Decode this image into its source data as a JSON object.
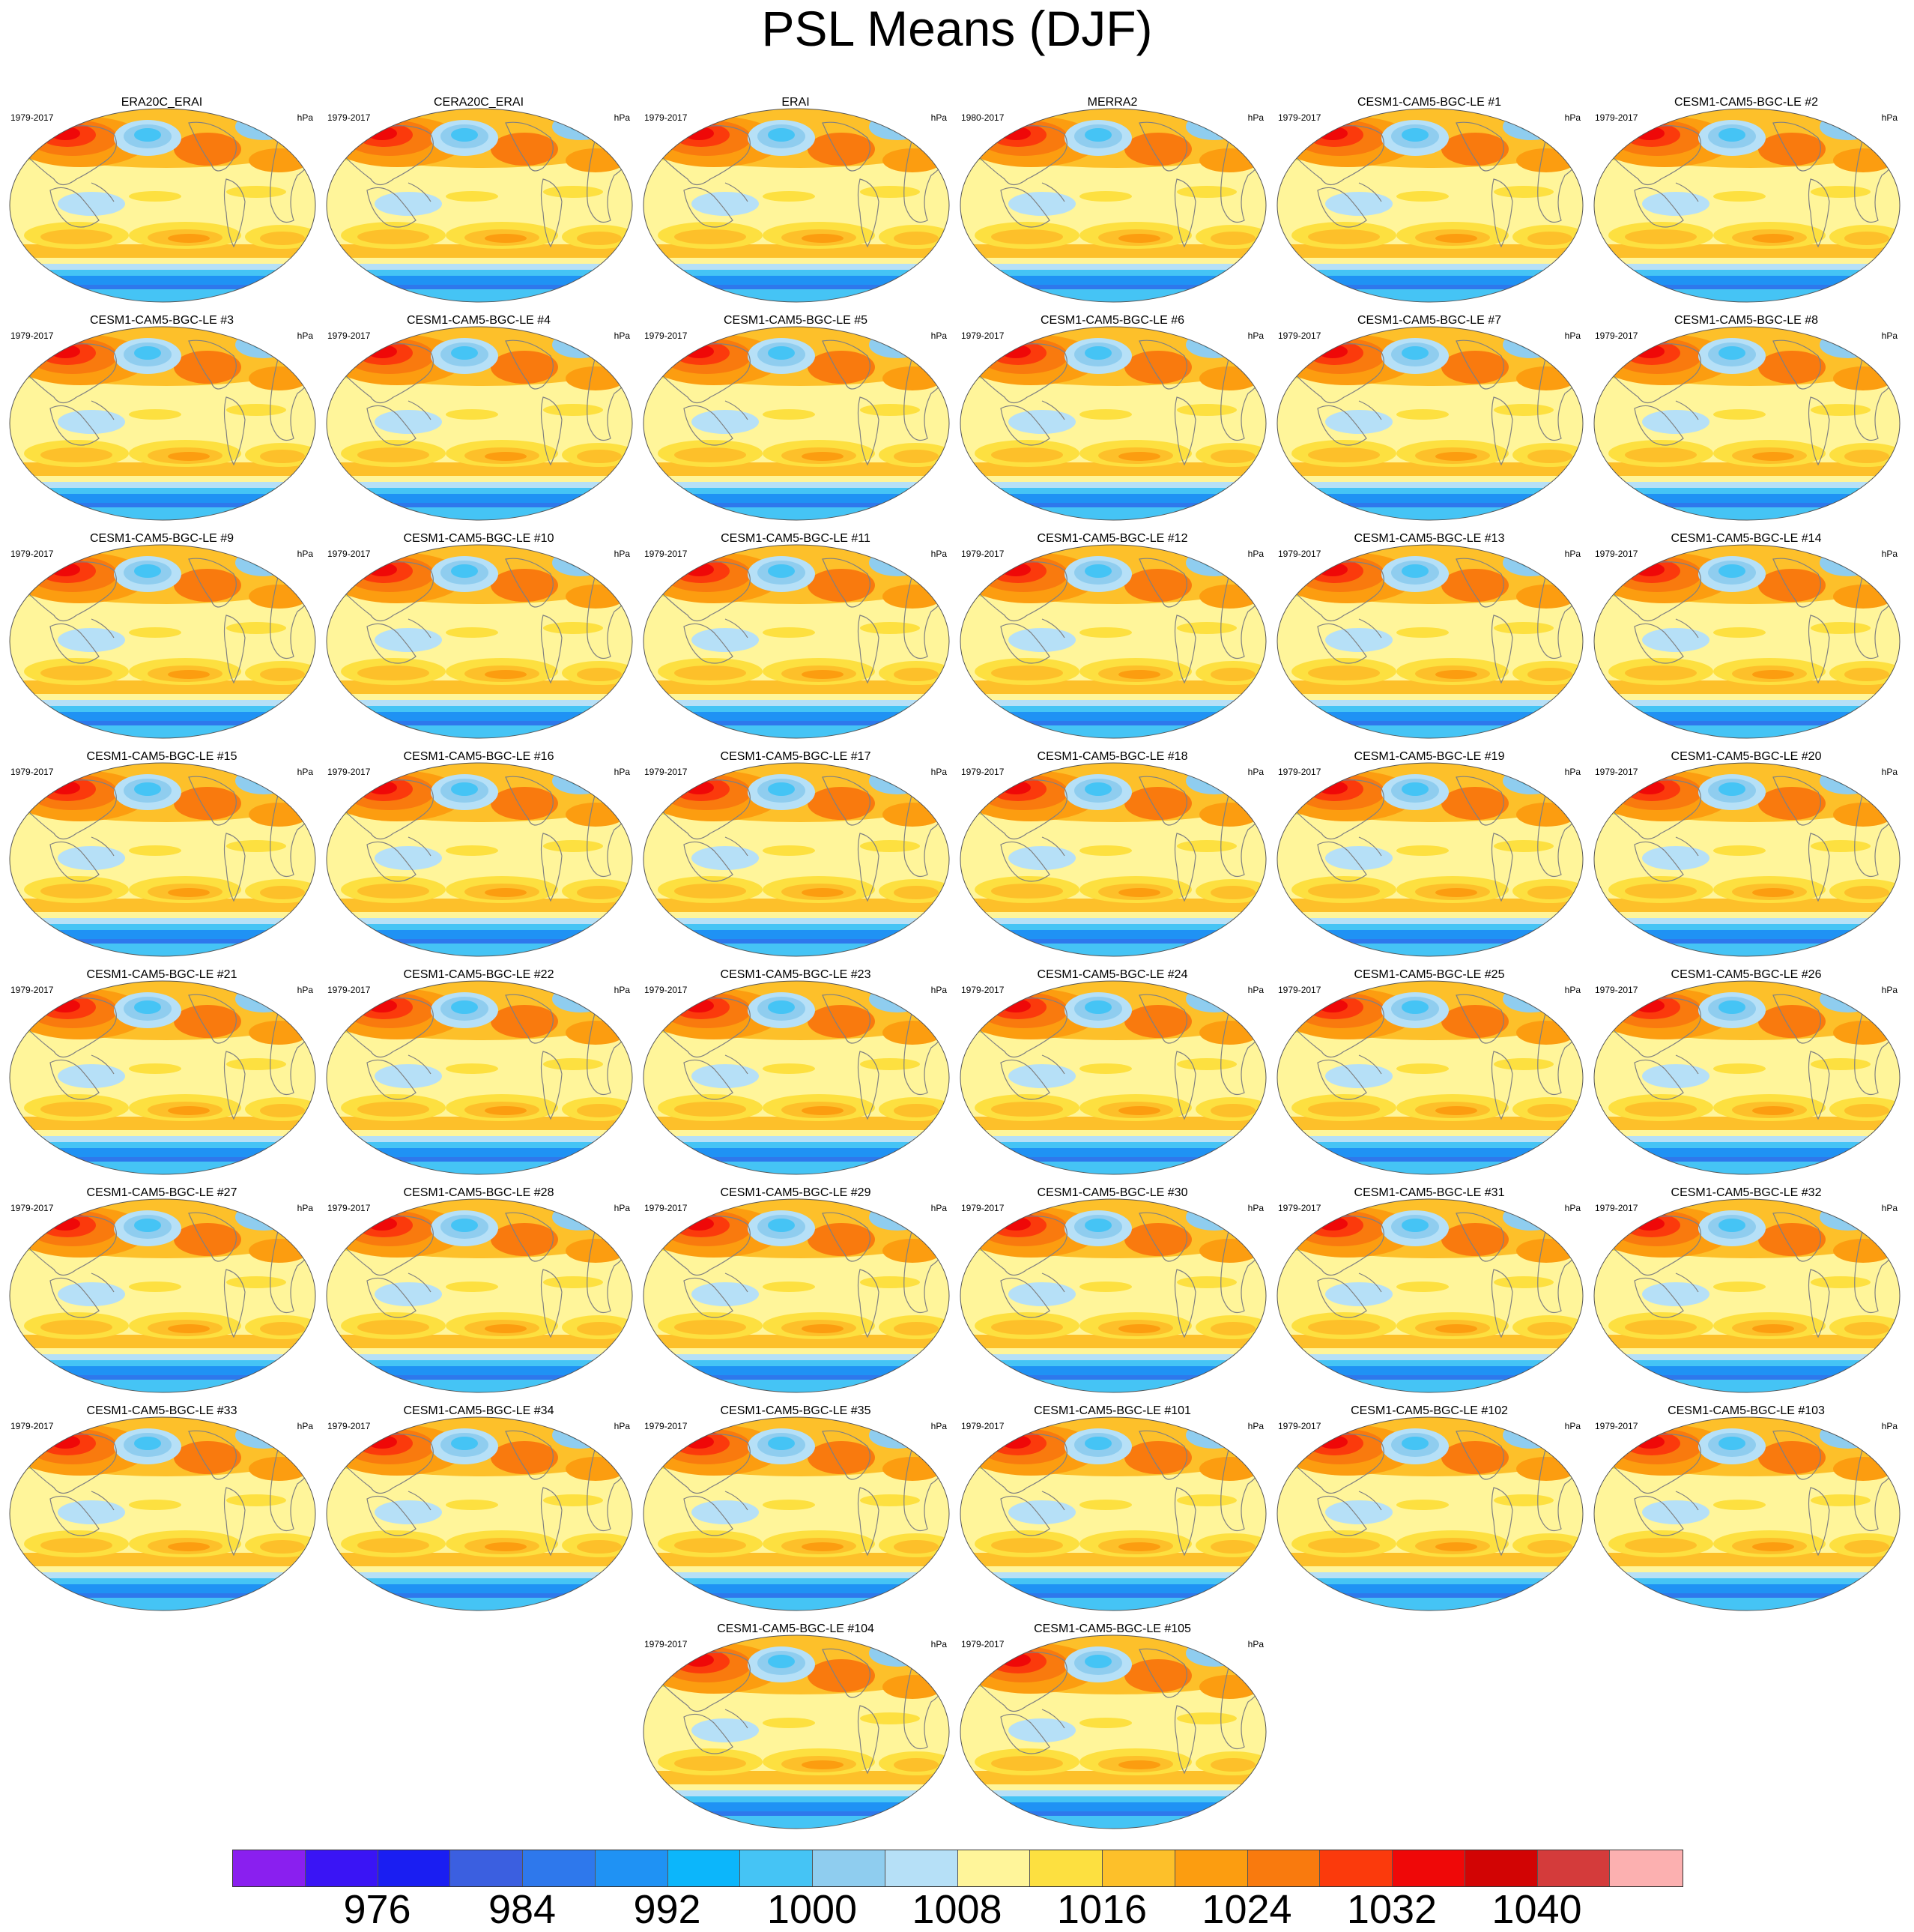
{
  "title": "PSL Means (DJF)",
  "units": "hPa",
  "panels": [
    {
      "title": "ERA20C_ERAI",
      "years": "1979-2017"
    },
    {
      "title": "CERA20C_ERAI",
      "years": "1979-2017"
    },
    {
      "title": "ERAI",
      "years": "1979-2017"
    },
    {
      "title": "MERRA2",
      "years": "1980-2017"
    },
    {
      "title": "CESM1-CAM5-BGC-LE #1",
      "years": "1979-2017"
    },
    {
      "title": "CESM1-CAM5-BGC-LE #2",
      "years": "1979-2017"
    },
    {
      "title": "CESM1-CAM5-BGC-LE #3",
      "years": "1979-2017"
    },
    {
      "title": "CESM1-CAM5-BGC-LE #4",
      "years": "1979-2017"
    },
    {
      "title": "CESM1-CAM5-BGC-LE #5",
      "years": "1979-2017"
    },
    {
      "title": "CESM1-CAM5-BGC-LE #6",
      "years": "1979-2017"
    },
    {
      "title": "CESM1-CAM5-BGC-LE #7",
      "years": "1979-2017"
    },
    {
      "title": "CESM1-CAM5-BGC-LE #8",
      "years": "1979-2017"
    },
    {
      "title": "CESM1-CAM5-BGC-LE #9",
      "years": "1979-2017"
    },
    {
      "title": "CESM1-CAM5-BGC-LE #10",
      "years": "1979-2017"
    },
    {
      "title": "CESM1-CAM5-BGC-LE #11",
      "years": "1979-2017"
    },
    {
      "title": "CESM1-CAM5-BGC-LE #12",
      "years": "1979-2017"
    },
    {
      "title": "CESM1-CAM5-BGC-LE #13",
      "years": "1979-2017"
    },
    {
      "title": "CESM1-CAM5-BGC-LE #14",
      "years": "1979-2017"
    },
    {
      "title": "CESM1-CAM5-BGC-LE #15",
      "years": "1979-2017"
    },
    {
      "title": "CESM1-CAM5-BGC-LE #16",
      "years": "1979-2017"
    },
    {
      "title": "CESM1-CAM5-BGC-LE #17",
      "years": "1979-2017"
    },
    {
      "title": "CESM1-CAM5-BGC-LE #18",
      "years": "1979-2017"
    },
    {
      "title": "CESM1-CAM5-BGC-LE #19",
      "years": "1979-2017"
    },
    {
      "title": "CESM1-CAM5-BGC-LE #20",
      "years": "1979-2017"
    },
    {
      "title": "CESM1-CAM5-BGC-LE #21",
      "years": "1979-2017"
    },
    {
      "title": "CESM1-CAM5-BGC-LE #22",
      "years": "1979-2017"
    },
    {
      "title": "CESM1-CAM5-BGC-LE #23",
      "years": "1979-2017"
    },
    {
      "title": "CESM1-CAM5-BGC-LE #24",
      "years": "1979-2017"
    },
    {
      "title": "CESM1-CAM5-BGC-LE #25",
      "years": "1979-2017"
    },
    {
      "title": "CESM1-CAM5-BGC-LE #26",
      "years": "1979-2017"
    },
    {
      "title": "CESM1-CAM5-BGC-LE #27",
      "years": "1979-2017"
    },
    {
      "title": "CESM1-CAM5-BGC-LE #28",
      "years": "1979-2017"
    },
    {
      "title": "CESM1-CAM5-BGC-LE #29",
      "years": "1979-2017"
    },
    {
      "title": "CESM1-CAM5-BGC-LE #30",
      "years": "1979-2017"
    },
    {
      "title": "CESM1-CAM5-BGC-LE #31",
      "years": "1979-2017"
    },
    {
      "title": "CESM1-CAM5-BGC-LE #32",
      "years": "1979-2017"
    },
    {
      "title": "CESM1-CAM5-BGC-LE #33",
      "years": "1979-2017"
    },
    {
      "title": "CESM1-CAM5-BGC-LE #34",
      "years": "1979-2017"
    },
    {
      "title": "CESM1-CAM5-BGC-LE #35",
      "years": "1979-2017"
    },
    {
      "title": "CESM1-CAM5-BGC-LE #101",
      "years": "1979-2017"
    },
    {
      "title": "CESM1-CAM5-BGC-LE #102",
      "years": "1979-2017"
    },
    {
      "title": "CESM1-CAM5-BGC-LE #103",
      "years": "1979-2017"
    },
    {
      "title": "CESM1-CAM5-BGC-LE #104",
      "years": "1979-2017"
    },
    {
      "title": "CESM1-CAM5-BGC-LE #105",
      "years": "1979-2017"
    }
  ],
  "colorbar": {
    "colors": [
      "#8a1fef",
      "#3a14f5",
      "#1a1ef2",
      "#3b5fe0",
      "#2e78ec",
      "#1f92f4",
      "#0cb6fb",
      "#45c4f5",
      "#8fcdef",
      "#b6e0f7",
      "#fff59a",
      "#fde040",
      "#fdc02a",
      "#fc9d10",
      "#f97a0e",
      "#fb3a0c",
      "#ef0808",
      "#d20404",
      "#d43b3b",
      "#fcb0b0"
    ],
    "labels": [
      "976",
      "984",
      "992",
      "1000",
      "1008",
      "1016",
      "1024",
      "1032",
      "1040"
    ]
  }
}
